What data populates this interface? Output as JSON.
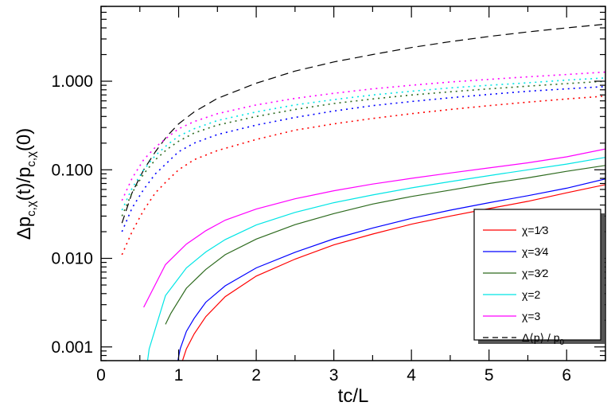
{
  "chart_data": {
    "type": "line",
    "xlabel": "tc/L",
    "ylabel": "Δp_{c,χ}(t)/p_{c,χ}(0)",
    "ylabel_parts": {
      "main": "Δp",
      "sub1": "c,χ",
      "mid": "(t)/p",
      "sub2": "c,χ",
      "tail": "(0)"
    },
    "xlim": [
      0,
      6.5
    ],
    "ylim": [
      0.0007,
      7
    ],
    "yscale": "log",
    "xticks": [
      0,
      1,
      2,
      3,
      4,
      5,
      6
    ],
    "xtick_labels": [
      "0",
      "1",
      "2",
      "3",
      "4",
      "5",
      "6"
    ],
    "yticks": [
      0.001,
      0.01,
      0.1,
      1.0
    ],
    "ytick_labels": [
      "0.001",
      "0.010",
      "0.100",
      "1.000"
    ],
    "legend_position": "bottom-right",
    "legend": [
      {
        "label": "χ=1⁄3",
        "color": "#ff0000",
        "style": "solid"
      },
      {
        "label": "χ=3⁄4",
        "color": "#0000ff",
        "style": "solid"
      },
      {
        "label": "χ=3⁄2",
        "color": "#2e6b1f",
        "style": "solid"
      },
      {
        "label": "χ=2",
        "color": "#00e5e5",
        "style": "solid"
      },
      {
        "label": "χ=3",
        "color": "#ff00ff",
        "style": "solid"
      },
      {
        "label": "Δ⟨p⟩ / p₀",
        "label_main": "Δ⟨p⟩ / p",
        "label_sub": "0",
        "color": "#000000",
        "style": "dashed"
      }
    ],
    "series": [
      {
        "color": "#ff0000",
        "style": "solid",
        "x": [
          1.05,
          1.1,
          1.2,
          1.35,
          1.6,
          2.0,
          2.5,
          3.0,
          3.5,
          4.0,
          4.5,
          5.0,
          5.5,
          6.0,
          6.5
        ],
        "y": [
          0.0007,
          0.00095,
          0.0014,
          0.0022,
          0.0037,
          0.0063,
          0.0098,
          0.0142,
          0.0188,
          0.0243,
          0.03,
          0.0365,
          0.044,
          0.055,
          0.068
        ]
      },
      {
        "color": "#0000ff",
        "style": "solid",
        "x": [
          0.99,
          1.02,
          1.1,
          1.2,
          1.35,
          1.6,
          2.0,
          2.5,
          3.0,
          3.5,
          4.0,
          4.5,
          5.0,
          5.5,
          6.0,
          6.5
        ],
        "y": [
          0.0007,
          0.00095,
          0.0015,
          0.0021,
          0.0032,
          0.0049,
          0.0078,
          0.0117,
          0.0166,
          0.022,
          0.0283,
          0.035,
          0.0425,
          0.051,
          0.062,
          0.079
        ]
      },
      {
        "color": "#2e6b1f",
        "style": "solid",
        "x": [
          0.83,
          0.9,
          1.1,
          1.35,
          1.6,
          2.0,
          2.5,
          3.0,
          3.5,
          4.0,
          4.5,
          5.0,
          5.5,
          6.0,
          6.5
        ],
        "y": [
          0.0018,
          0.0024,
          0.0046,
          0.0075,
          0.011,
          0.0165,
          0.024,
          0.032,
          0.041,
          0.05,
          0.059,
          0.07,
          0.081,
          0.096,
          0.112
        ]
      },
      {
        "color": "#00e5e5",
        "style": "solid",
        "x": [
          0.6,
          0.62,
          0.83,
          1.1,
          1.35,
          1.6,
          2.0,
          2.5,
          3.0,
          3.5,
          4.0,
          4.5,
          5.0,
          5.5,
          6.0,
          6.5
        ],
        "y": [
          0.0007,
          0.00095,
          0.0038,
          0.0078,
          0.0118,
          0.0163,
          0.0238,
          0.033,
          0.0425,
          0.052,
          0.0625,
          0.0735,
          0.086,
          0.1,
          0.116,
          0.138
        ]
      },
      {
        "color": "#ff00ff",
        "style": "solid",
        "x": [
          0.55,
          0.83,
          1.1,
          1.35,
          1.6,
          2.0,
          2.5,
          3.0,
          3.5,
          4.0,
          4.5,
          5.0,
          5.5,
          6.0,
          6.5
        ],
        "y": [
          0.0028,
          0.0085,
          0.0145,
          0.0205,
          0.027,
          0.036,
          0.047,
          0.058,
          0.069,
          0.08,
          0.092,
          0.105,
          0.12,
          0.14,
          0.172
        ]
      },
      {
        "color": "#000000",
        "style": "dashed",
        "x": [
          0.27,
          0.4,
          0.55,
          0.7,
          0.85,
          1.0,
          1.2,
          1.5,
          2.0,
          2.5,
          3.0,
          3.5,
          4.0,
          4.5,
          5.0,
          5.5,
          6.0,
          6.5
        ],
        "y": [
          0.025,
          0.055,
          0.1,
          0.16,
          0.24,
          0.33,
          0.45,
          0.64,
          0.95,
          1.3,
          1.65,
          2.0,
          2.4,
          2.8,
          3.2,
          3.6,
          4.0,
          4.4
        ]
      },
      {
        "color": "#ff0000",
        "style": "dotted",
        "x": [
          0.27,
          0.4,
          0.55,
          0.7,
          0.85,
          1.0,
          1.2,
          1.5,
          2.0,
          2.5,
          3.0,
          3.5,
          4.0,
          4.5,
          5.0,
          5.5,
          6.0,
          6.5
        ],
        "y": [
          0.011,
          0.02,
          0.035,
          0.055,
          0.075,
          0.1,
          0.13,
          0.165,
          0.22,
          0.28,
          0.33,
          0.38,
          0.43,
          0.48,
          0.53,
          0.58,
          0.63,
          0.68
        ]
      },
      {
        "color": "#0000ff",
        "style": "dotted",
        "x": [
          0.27,
          0.4,
          0.55,
          0.7,
          0.85,
          1.0,
          1.2,
          1.5,
          2.0,
          2.5,
          3.0,
          3.5,
          4.0,
          4.5,
          5.0,
          5.5,
          6.0,
          6.5
        ],
        "y": [
          0.02,
          0.037,
          0.06,
          0.09,
          0.12,
          0.16,
          0.2,
          0.25,
          0.32,
          0.39,
          0.46,
          0.53,
          0.59,
          0.65,
          0.71,
          0.77,
          0.82,
          0.87
        ]
      },
      {
        "color": "#2e6b1f",
        "style": "dotted",
        "x": [
          0.27,
          0.4,
          0.55,
          0.7,
          0.85,
          1.0,
          1.2,
          1.5,
          2.0,
          2.5,
          3.0,
          3.5,
          4.0,
          4.5,
          5.0,
          5.5,
          6.0,
          6.5
        ],
        "y": [
          0.03,
          0.055,
          0.09,
          0.13,
          0.17,
          0.21,
          0.26,
          0.32,
          0.4,
          0.48,
          0.56,
          0.63,
          0.7,
          0.76,
          0.82,
          0.88,
          0.94,
          1.0
        ]
      },
      {
        "color": "#00e5e5",
        "style": "dotted",
        "x": [
          0.27,
          0.4,
          0.55,
          0.7,
          0.85,
          1.0,
          1.2,
          1.5,
          2.0,
          2.5,
          3.0,
          3.5,
          4.0,
          4.5,
          5.0,
          5.5,
          6.0,
          6.5
        ],
        "y": [
          0.035,
          0.062,
          0.1,
          0.145,
          0.19,
          0.24,
          0.29,
          0.36,
          0.45,
          0.54,
          0.62,
          0.7,
          0.77,
          0.84,
          0.9,
          0.96,
          1.03,
          1.09
        ]
      },
      {
        "color": "#ff00ff",
        "style": "dotted",
        "x": [
          0.27,
          0.4,
          0.55,
          0.7,
          0.85,
          1.0,
          1.2,
          1.5,
          2.0,
          2.5,
          3.0,
          3.5,
          4.0,
          4.5,
          5.0,
          5.5,
          6.0,
          6.5
        ],
        "y": [
          0.045,
          0.08,
          0.13,
          0.18,
          0.23,
          0.29,
          0.35,
          0.43,
          0.54,
          0.64,
          0.73,
          0.82,
          0.9,
          0.98,
          1.05,
          1.12,
          1.19,
          1.27
        ]
      }
    ]
  }
}
